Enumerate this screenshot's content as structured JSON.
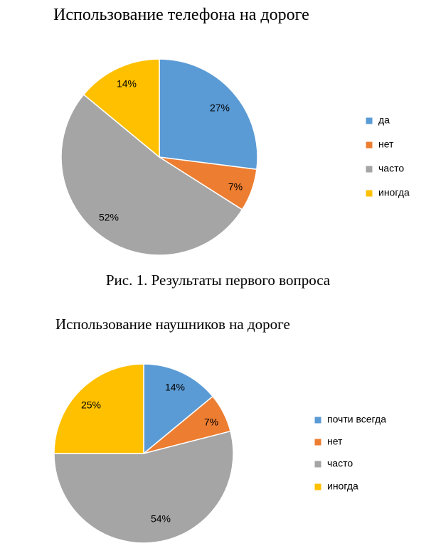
{
  "chart_data": [
    {
      "type": "pie",
      "title": "Использование телефона на дороге",
      "categories": [
        "да",
        "нет",
        "часто",
        "иногда"
      ],
      "values": [
        27,
        7,
        52,
        14
      ],
      "labels": [
        "27%",
        "7%",
        "52%",
        "14%"
      ],
      "colors": [
        "#5B9BD5",
        "#ED7D31",
        "#A5A5A5",
        "#FFC000"
      ],
      "legend": "right",
      "caption": "Рис. 1. Результаты первого вопроса"
    },
    {
      "type": "pie",
      "title": "Использование наушников на дороге",
      "categories": [
        "почти всегда",
        "нет",
        "часто",
        "иногда"
      ],
      "values": [
        14,
        7,
        54,
        25
      ],
      "labels": [
        "14%",
        "7%",
        "54%",
        "25%"
      ],
      "colors": [
        "#5B9BD5",
        "#ED7D31",
        "#A5A5A5",
        "#FFC000"
      ],
      "legend": "right"
    }
  ]
}
